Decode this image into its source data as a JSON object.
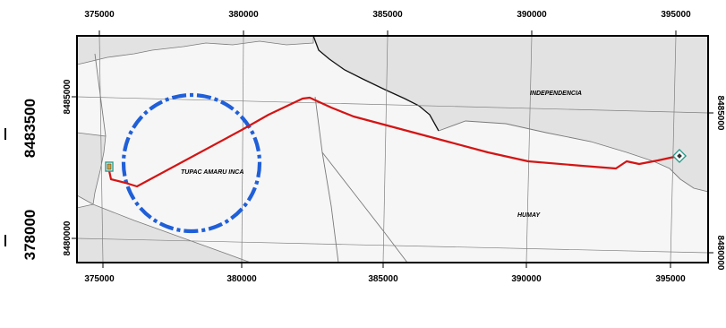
{
  "map": {
    "top_ticks": [
      "375000",
      "380000",
      "385000",
      "390000",
      "395000"
    ],
    "bottom_ticks": [
      "375000",
      "380000",
      "385000",
      "390000",
      "395000"
    ],
    "left_ticks": [
      "8485000",
      "8480000"
    ],
    "right_ticks": [
      "8485000",
      "8480000"
    ],
    "side_coords": [
      "8483500",
      "378000"
    ],
    "places": {
      "independencia": "INDEPENDENCIA",
      "tupac_amaru_inca": "TUPAC AMARU INCA",
      "humay": "HUMAY"
    },
    "colors": {
      "route": "#d41414",
      "buffer_circle": "#1f5fd8",
      "land_shaded": "#e2e2e2",
      "land_light": "#f6f6f6",
      "graticule": "#808080",
      "frame": "#000000"
    },
    "icons": [
      "start-point-marker-icon",
      "end-point-marker-icon"
    ]
  }
}
